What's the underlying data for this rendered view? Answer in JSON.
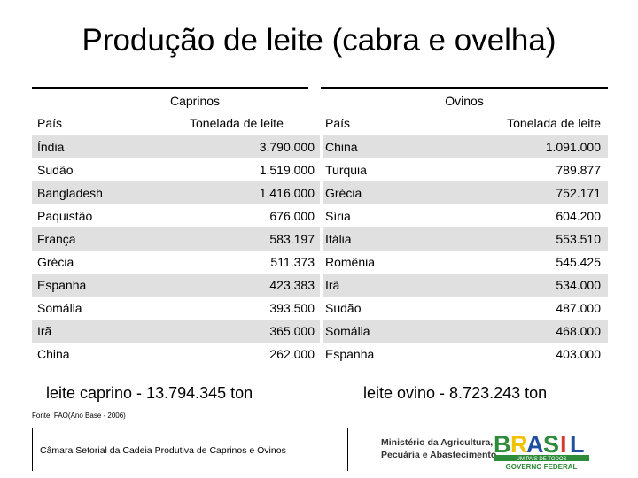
{
  "title": "Produção de leite (cabra e ovelha)",
  "groups": {
    "left": "Caprinos",
    "right": "Ovinos"
  },
  "columns": [
    "País",
    "Tonelada de leite",
    "País",
    "Tonelada de leite"
  ],
  "rows": [
    [
      "Índia",
      "3.790.000",
      "China",
      "1.091.000"
    ],
    [
      "Sudão",
      "1.519.000",
      "Turquia",
      "789.877"
    ],
    [
      "Bangladesh",
      "1.416.000",
      "Grécia",
      "752.171"
    ],
    [
      "Paquistão",
      "676.000",
      "Síria",
      "604.200"
    ],
    [
      "França",
      "583.197",
      "Itália",
      "553.510"
    ],
    [
      "Grécia",
      "511.373",
      "Romênia",
      "545.425"
    ],
    [
      "Espanha",
      "423.383",
      "Irã",
      "534.000"
    ],
    [
      "Somália",
      "393.500",
      "Sudão",
      "487.000"
    ],
    [
      "Irã",
      "365.000",
      "Somália",
      "468.000"
    ],
    [
      "China",
      "262.000",
      "Espanha",
      "403.000"
    ]
  ],
  "totals": {
    "caprino": "leite caprino - 13.794.345 ton",
    "ovino": "leite ovino - 8.723.243 ton"
  },
  "source": "Fonte: FAO(Ano Base - 2006)",
  "footer": "Câmara Setorial da Cadeia Produtiva de Caprinos e Ovinos",
  "ministry": [
    "Ministério da Agricultura,",
    "Pecuária e Abastecimento"
  ],
  "brasil_logo": {
    "word": "BRASIL",
    "tagline": "UM PAÍS DE TODOS",
    "government": "GOVERNO FEDERAL"
  },
  "colors": {
    "row_shade": "#e0e0e0",
    "logo_green": "#2e8b3a",
    "logo_yellow": "#f2c200",
    "logo_blue": "#1f4fa0",
    "logo_red": "#d63a2f"
  }
}
